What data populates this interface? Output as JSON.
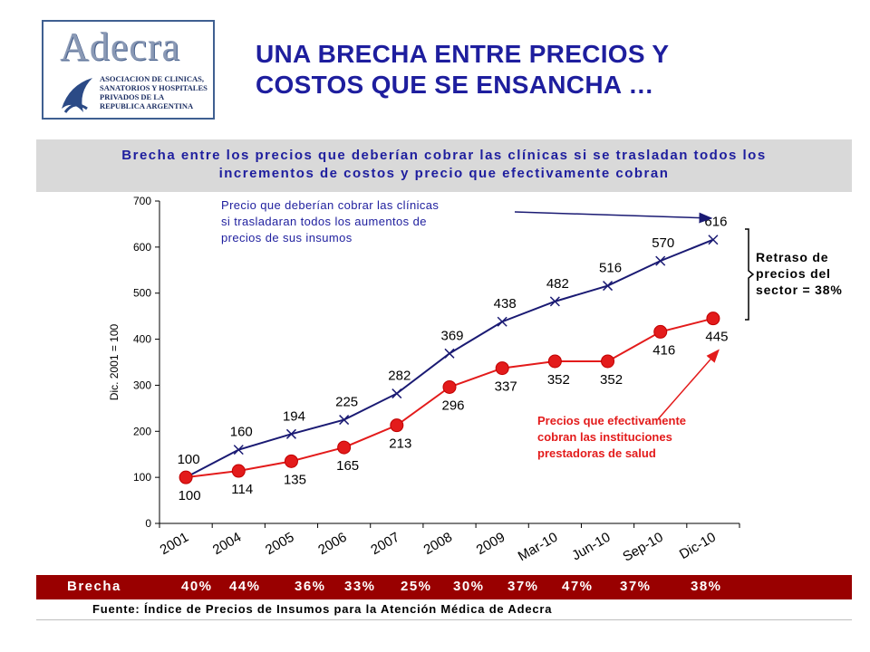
{
  "logo": {
    "title": "Adecra",
    "subtitle_lines": [
      "ASOCIACION DE CLINICAS,",
      "SANATORIOS Y HOSPITALES",
      "PRIVADOS DE LA",
      "REPUBLICA ARGENTINA"
    ]
  },
  "slide_title_lines": [
    "UNA BRECHA ENTRE PRECIOS Y",
    "COSTOS QUE SE ENSANCHA …"
  ],
  "chart_header_lines": [
    "Brecha entre los precios que deberían cobrar las clínicas si se trasladan todos los",
    "incrementos de costos y precio que efectivamente cobran"
  ],
  "chart_data": {
    "type": "line",
    "categories": [
      "2001",
      "2004",
      "2005",
      "2006",
      "2007",
      "2008",
      "2009",
      "Mar-10",
      "Jun-10",
      "Sep-10",
      "Dic-10"
    ],
    "series": [
      {
        "name": "Precio que deberían cobrar las clínicas si trasladaran todos los aumentos de precios de sus insumos",
        "values": [
          100,
          160,
          194,
          225,
          282,
          369,
          438,
          482,
          516,
          570,
          616
        ],
        "color": "#1a1a73",
        "marker": "x"
      },
      {
        "name": "Precios que efectivamente cobran las instituciones prestadoras de salud",
        "values": [
          100,
          114,
          135,
          165,
          213,
          296,
          337,
          352,
          352,
          416,
          445
        ],
        "color": "#e31b1b",
        "marker": "circle"
      }
    ],
    "ylabel": "Dic. 2001 = 100",
    "xlabel": "",
    "ylim": [
      0,
      700
    ],
    "yticks": [
      0,
      100,
      200,
      300,
      400,
      500,
      600,
      700
    ],
    "grid": false,
    "annotations": {
      "upper_label_lines": [
        "Precio que deberían cobrar las clínicas",
        "si trasladaran todos los aumentos de",
        "precios de sus insumos"
      ],
      "lower_label_lines": [
        "Precios que efectivamente",
        "cobran las instituciones",
        "prestadoras de salud"
      ],
      "gap_label_lines": [
        "Retraso de",
        "precios del",
        "sector = 38%"
      ]
    },
    "colors": {
      "upper": "#1a1a73",
      "lower": "#e31b1b",
      "upper_label": "#1e1e9e",
      "lower_label": "#e31b1b"
    }
  },
  "brecha": {
    "label": "Brecha",
    "values": [
      "40%",
      "44%",
      "36%",
      "33%",
      "25%",
      "30%",
      "37%",
      "47%",
      "37%",
      "38%"
    ]
  },
  "source": "Fuente: Índice de Precios de Insumos para la Atención Médica de Adecra"
}
